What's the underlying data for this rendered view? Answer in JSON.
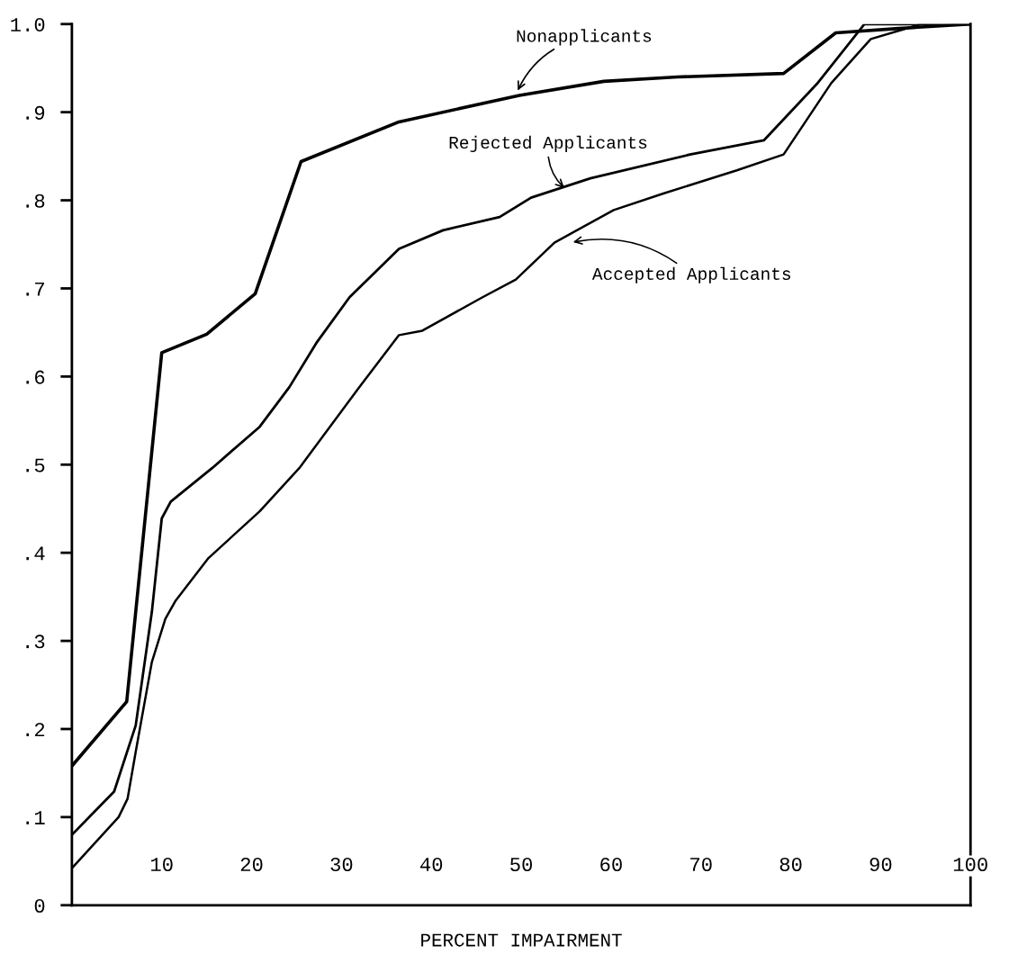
{
  "chart_data": {
    "type": "line",
    "xlabel": "PERCENT IMPAIRMENT",
    "xlim": [
      0,
      100
    ],
    "ylim": [
      0,
      1.0
    ],
    "xticks": [
      10,
      20,
      30,
      40,
      50,
      60,
      70,
      80,
      90,
      100
    ],
    "yticks": [
      {
        "value": 0,
        "label": "0"
      },
      {
        "value": 0.1,
        "label": ".1"
      },
      {
        "value": 0.2,
        "label": ".2"
      },
      {
        "value": 0.3,
        "label": ".3"
      },
      {
        "value": 0.4,
        "label": ".4"
      },
      {
        "value": 0.5,
        "label": ".5"
      },
      {
        "value": 0.6,
        "label": ".6"
      },
      {
        "value": 0.7,
        "label": ".7"
      },
      {
        "value": 0.8,
        "label": ".8"
      },
      {
        "value": 0.9,
        "label": ".9"
      },
      {
        "value": 1.0,
        "label": "1.0"
      }
    ],
    "grid": false,
    "legend": false,
    "marker": "none",
    "line_style": "solid",
    "series": [
      {
        "name": "Nonapplicants",
        "color": "#000000",
        "x": [
          0,
          6.1,
          10.0,
          15.0,
          20.4,
          25.5,
          36.4,
          49.8,
          59.2,
          67.4,
          79.2,
          85,
          92,
          100
        ],
        "values": [
          0.158,
          0.231,
          0.627,
          0.648,
          0.694,
          0.844,
          0.889,
          0.919,
          0.935,
          0.94,
          0.944,
          0.99,
          0.995,
          1.0
        ]
      },
      {
        "name": "Rejected Applicants",
        "color": "#000000",
        "x": [
          0,
          4.7,
          7.1,
          8.9,
          10.0,
          11.0,
          15.6,
          20.9,
          24.2,
          27.2,
          30.9,
          36.4,
          41.3,
          47.6,
          51.1,
          57.7,
          68.8,
          77.0,
          82.9,
          88.2,
          100
        ],
        "values": [
          0.08,
          0.129,
          0.204,
          0.333,
          0.439,
          0.458,
          0.496,
          0.543,
          0.588,
          0.638,
          0.69,
          0.745,
          0.766,
          0.781,
          0.803,
          0.825,
          0.852,
          0.868,
          0.932,
          1.0,
          1.0
        ]
      },
      {
        "name": "Accepted Applicants",
        "color": "#000000",
        "x": [
          0,
          5.2,
          6.2,
          7.1,
          8.9,
          10.4,
          11.5,
          15.2,
          20.9,
          25.3,
          32.0,
          36.4,
          39.0,
          45.7,
          49.4,
          53.7,
          60.3,
          65.9,
          74.0,
          79.2,
          84.5,
          88.9,
          94.5,
          100
        ],
        "values": [
          0.042,
          0.1,
          0.121,
          0.174,
          0.276,
          0.325,
          0.345,
          0.394,
          0.447,
          0.496,
          0.588,
          0.647,
          0.652,
          0.69,
          0.71,
          0.752,
          0.789,
          0.808,
          0.834,
          0.852,
          0.933,
          0.983,
          1.0,
          1.0
        ]
      }
    ]
  }
}
